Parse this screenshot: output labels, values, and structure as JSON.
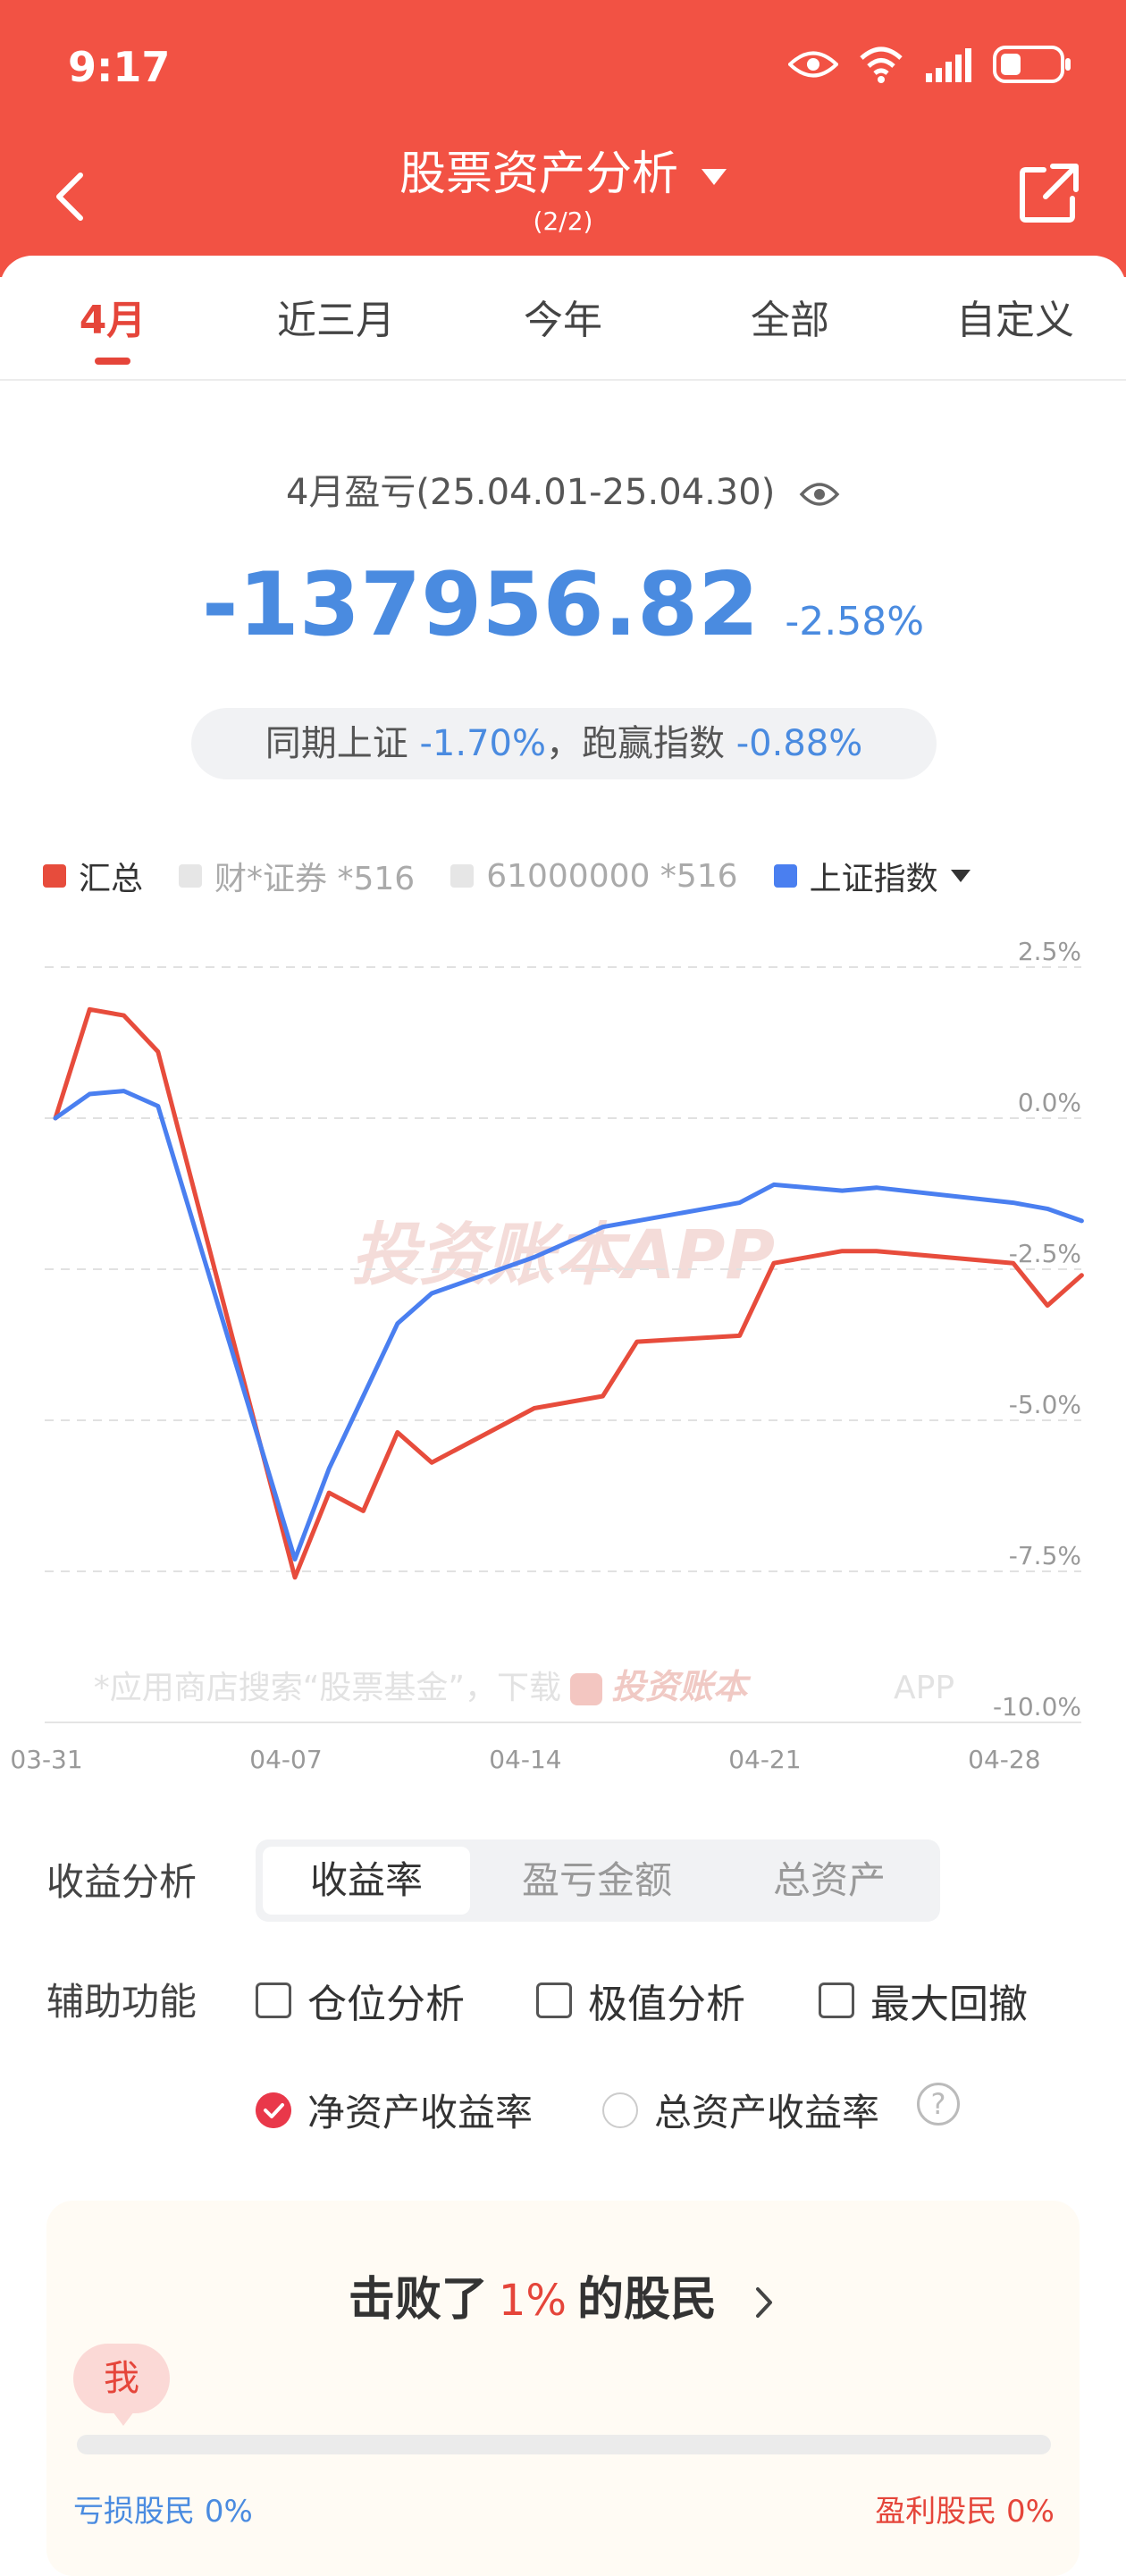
{
  "status": {
    "time": "9:17"
  },
  "header": {
    "title": "股票资产分析",
    "subtitle": "(2/2)"
  },
  "tabs": [
    {
      "label": "4月",
      "active": true
    },
    {
      "label": "近三月",
      "active": false
    },
    {
      "label": "今年",
      "active": false
    },
    {
      "label": "全部",
      "active": false
    },
    {
      "label": "自定义",
      "active": false
    }
  ],
  "summary": {
    "period": "4月盈亏(25.04.01-25.04.30)",
    "amount": "-137956.82",
    "percent": "-2.58%",
    "compare_prefix": "同期上证",
    "compare_sh": "-1.70%",
    "compare_mid": "，跑赢指数",
    "compare_beat": "-0.88%"
  },
  "legend": [
    {
      "label": "汇总",
      "color": "#e74c3c",
      "active": true
    },
    {
      "label": "财*证券 *516",
      "color": "#e6e6e6",
      "active": false
    },
    {
      "label": "61000000 *516",
      "color": "#e6e6e6",
      "active": false
    },
    {
      "label": "上证指数",
      "color": "#4a7ff0",
      "active": true
    }
  ],
  "chart_data": {
    "type": "line",
    "ylim": [
      -10,
      2.5
    ],
    "y_ticks": [
      "2.5%",
      "0.0%",
      "-2.5%",
      "-5.0%",
      "-7.5%",
      "-10.0%"
    ],
    "y_tick_values": [
      2.5,
      0,
      -2.5,
      -5,
      -7.5,
      -10
    ],
    "x_tick_labels": [
      "03-31",
      "04-07",
      "04-14",
      "04-21",
      "04-28"
    ],
    "x_tick_index": [
      0,
      7,
      14,
      21,
      28
    ],
    "grid": true,
    "watermark": "投资账本APP",
    "footer_note": "*应用商店搜索“股票基金”，下载",
    "footer_brand": "投资账本",
    "footer_app": "APP",
    "x": [
      0,
      1,
      2,
      3,
      7,
      8,
      9,
      10,
      11,
      14,
      16,
      17,
      20,
      21,
      23,
      24,
      28,
      29,
      30
    ],
    "series": [
      {
        "name": "汇总",
        "color": "#e74c3c",
        "values": [
          0.0,
          1.8,
          1.7,
          1.1,
          -7.6,
          -6.2,
          -6.5,
          -5.2,
          -5.7,
          -4.8,
          -4.6,
          -3.7,
          -3.6,
          -2.4,
          -2.2,
          -2.2,
          -2.4,
          -3.1,
          -2.6
        ]
      },
      {
        "name": "上证指数",
        "color": "#4a7ff0",
        "values": [
          0.0,
          0.4,
          0.45,
          0.2,
          -7.3,
          -5.8,
          -4.6,
          -3.4,
          -2.9,
          -2.3,
          -1.8,
          -1.7,
          -1.4,
          -1.1,
          -1.2,
          -1.15,
          -1.4,
          -1.5,
          -1.7
        ]
      }
    ]
  },
  "analysis": {
    "label": "收益分析",
    "segments": [
      {
        "label": "收益率",
        "active": true
      },
      {
        "label": "盈亏金额",
        "active": false
      },
      {
        "label": "总资产",
        "active": false
      }
    ]
  },
  "aux": {
    "label": "辅助功能",
    "checks": [
      "仓位分析",
      "极值分析",
      "最大回撤"
    ],
    "radios": [
      {
        "label": "净资产收益率",
        "selected": true
      },
      {
        "label": "总资产收益率",
        "selected": false
      }
    ]
  },
  "beat": {
    "prefix": "击败了",
    "percent": "1%",
    "suffix": "的股民",
    "me": "我",
    "lose_label": "亏损股民",
    "lose_value": "0%",
    "win_label": "盈利股民",
    "win_value": "0%"
  }
}
